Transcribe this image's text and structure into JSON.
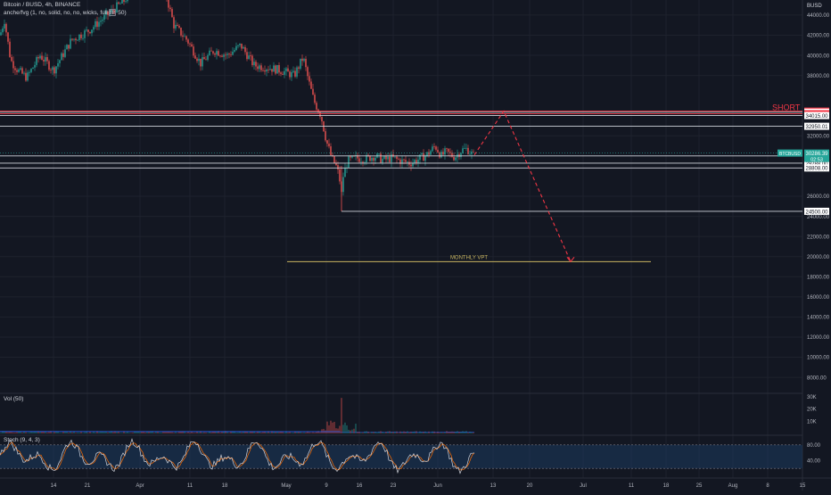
{
  "header": {
    "title": "Bitcoin / BUSD, 4h, BINANCE",
    "indicator": "anche/fvg (1, no, solid, no, no, wicks, full fill, 50)"
  },
  "colors": {
    "background": "#131722",
    "grid": "#1e222d",
    "up": "#26a69a",
    "down": "#ef5350",
    "short_line": "#f23645",
    "vpt_line": "#c8b560",
    "stoch_k": "#d1d4dc",
    "stoch_band": "#1c3a5e"
  },
  "panes": {
    "volume_label": "Vol (50)",
    "stoch_label": "Stoch (9, 4, 3)"
  },
  "chart_data": {
    "type": "candlestick",
    "quote": "BUSD",
    "y_ticks": [
      44000,
      42000,
      40000,
      38000,
      32000,
      26000,
      24000,
      22000,
      20000,
      18000,
      16000,
      14000,
      12000,
      10000,
      8000
    ],
    "ylim": [
      6500,
      45500
    ],
    "x_ticks": [
      "14",
      "21",
      "Apr",
      "11",
      "18",
      "May",
      "9",
      "16",
      "23",
      "Jun",
      "13",
      "20",
      "Jul",
      "11",
      "18",
      "25",
      "Aug",
      "8",
      "15"
    ],
    "price_path": [
      [
        0,
        42000
      ],
      [
        5,
        43500
      ],
      [
        12,
        39500
      ],
      [
        20,
        38500
      ],
      [
        30,
        37800
      ],
      [
        45,
        40000
      ],
      [
        60,
        38500
      ],
      [
        80,
        41500
      ],
      [
        100,
        42500
      ],
      [
        120,
        44000
      ],
      [
        140,
        45500
      ],
      [
        158,
        47800
      ],
      [
        170,
        46800
      ],
      [
        182,
        47500
      ],
      [
        195,
        43000
      ],
      [
        210,
        41500
      ],
      [
        225,
        39200
      ],
      [
        240,
        40500
      ],
      [
        255,
        40000
      ],
      [
        270,
        41000
      ],
      [
        285,
        39000
      ],
      [
        300,
        38800
      ],
      [
        315,
        38500
      ],
      [
        330,
        38000
      ],
      [
        340,
        39800
      ],
      [
        346,
        37500
      ],
      [
        352,
        35500
      ],
      [
        360,
        34000
      ],
      [
        366,
        31500
      ],
      [
        372,
        29800
      ],
      [
        378,
        28800
      ],
      [
        381,
        27600
      ],
      [
        383,
        26200
      ],
      [
        385,
        28000
      ],
      [
        390,
        29500
      ],
      [
        400,
        29800
      ],
      [
        410,
        29700
      ],
      [
        420,
        30000
      ],
      [
        430,
        29600
      ],
      [
        440,
        29800
      ],
      [
        450,
        29500
      ],
      [
        460,
        29300
      ],
      [
        470,
        29700
      ],
      [
        480,
        30200
      ],
      [
        488,
        31000
      ],
      [
        495,
        30000
      ],
      [
        500,
        30400
      ],
      [
        510,
        29900
      ],
      [
        518,
        30600
      ],
      [
        524,
        30700
      ],
      [
        528,
        30300
      ],
      [
        532,
        30000
      ]
    ],
    "levels": [
      {
        "price": 34456.3,
        "label": "34456.30",
        "style": "red"
      },
      {
        "price": 34347.41,
        "label": "34347.41",
        "style": "white"
      },
      {
        "price": 34200.0,
        "label": "34200.00",
        "style": "red"
      },
      {
        "price": 34015.0,
        "label": "34015.00",
        "style": "white"
      },
      {
        "price": 32950.01,
        "label": "32950.01",
        "style": "white"
      },
      {
        "price": 30286.39,
        "label": "30286.39",
        "style": "current"
      },
      {
        "price": 30004.24,
        "label": "30004.24",
        "style": "white"
      },
      {
        "price": 29288.0,
        "label": "29288.00",
        "style": "white"
      },
      {
        "price": 28808.0,
        "label": "28808.00",
        "style": "white"
      },
      {
        "price": 24500.0,
        "label": "24500.00",
        "style": "white"
      },
      {
        "price": 19500.0,
        "label": "MONTHLY VPT",
        "style": "vpt"
      }
    ],
    "current_symbol": "BTCBUSD",
    "current_price": "30286.39",
    "current_countdown": "02:53",
    "annotation": "SHORT",
    "projection": [
      {
        "x": 532,
        "price": 30100
      },
      {
        "x": 565,
        "price": 34456.3
      },
      {
        "x": 640,
        "price": 19500
      }
    ],
    "volume_ticks": [
      "30K",
      "20K",
      "10K"
    ],
    "volume_max": 32000,
    "stoch_ticks": [
      "80.00",
      "40.00"
    ],
    "stoch_range": [
      0,
      100
    ],
    "stoch_band": [
      20,
      80
    ]
  }
}
